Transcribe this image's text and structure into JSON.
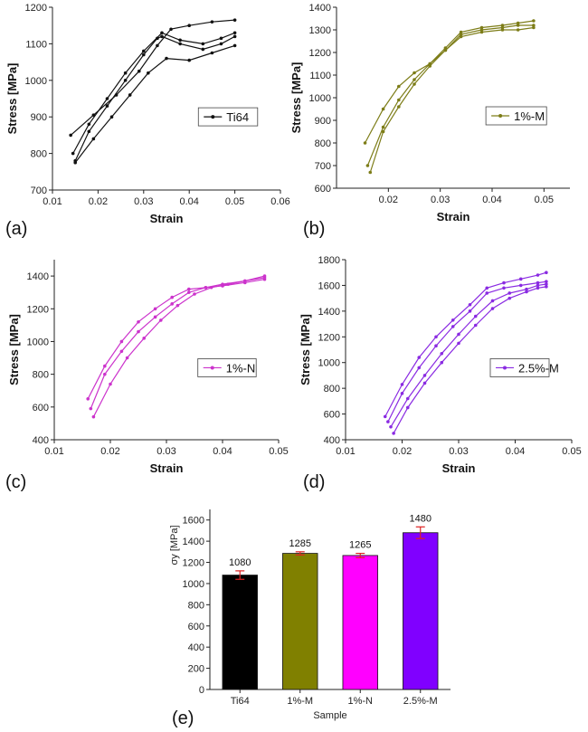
{
  "figure": {
    "panels": [
      {
        "letter": "(a)"
      },
      {
        "letter": "(b)"
      },
      {
        "letter": "(c)"
      },
      {
        "letter": "(d)"
      },
      {
        "letter": "(e)"
      }
    ]
  },
  "chart_data": [
    {
      "type": "line",
      "panel": "(a)",
      "xlabel": "Strain",
      "ylabel": "Stress [MPa]",
      "xlim": [
        0.01,
        0.06
      ],
      "ylim": [
        700,
        1200
      ],
      "xticks": [
        "0.01",
        "0.02",
        "0.03",
        "0.04",
        "0.05",
        "0.06"
      ],
      "yticks": [
        "700",
        "800",
        "900",
        "1000",
        "1100",
        "1200"
      ],
      "color": "#111111",
      "legend": {
        "label": "Ti64",
        "placement": "center-right"
      },
      "series": [
        {
          "x": [
            0.014,
            0.019,
            0.024,
            0.029,
            0.033,
            0.036,
            0.04,
            0.045,
            0.05
          ],
          "y": [
            850,
            905,
            960,
            1025,
            1095,
            1140,
            1150,
            1160,
            1165
          ]
        },
        {
          "x": [
            0.015,
            0.018,
            0.022,
            0.026,
            0.03,
            0.033,
            0.034,
            0.038,
            0.043,
            0.047,
            0.05
          ],
          "y": [
            780,
            860,
            930,
            1000,
            1070,
            1115,
            1120,
            1100,
            1085,
            1100,
            1120
          ]
        },
        {
          "x": [
            0.0145,
            0.018,
            0.022,
            0.026,
            0.03,
            0.034,
            0.038,
            0.043,
            0.047,
            0.05
          ],
          "y": [
            800,
            880,
            950,
            1020,
            1080,
            1130,
            1110,
            1100,
            1115,
            1130
          ]
        },
        {
          "x": [
            0.015,
            0.019,
            0.023,
            0.027,
            0.031,
            0.035,
            0.04,
            0.045,
            0.05
          ],
          "y": [
            775,
            840,
            900,
            960,
            1020,
            1060,
            1055,
            1075,
            1095
          ]
        }
      ]
    },
    {
      "type": "line",
      "panel": "(b)",
      "xlabel": "Strain",
      "ylabel": "Stress [MPa]",
      "xlim": [
        0.01,
        0.055
      ],
      "ylim": [
        600,
        1400
      ],
      "xticks": [
        "0.02",
        "0.03",
        "0.04",
        "0.05"
      ],
      "yticks": [
        "600",
        "700",
        "800",
        "900",
        "1000",
        "1100",
        "1200",
        "1300",
        "1400"
      ],
      "color": "#7d7d18",
      "legend": {
        "label": "1%-M",
        "placement": "center-right"
      },
      "series": [
        {
          "x": [
            0.0155,
            0.019,
            0.022,
            0.025,
            0.028,
            0.031,
            0.034,
            0.038,
            0.042,
            0.045,
            0.048
          ],
          "y": [
            800,
            950,
            1050,
            1110,
            1150,
            1210,
            1270,
            1290,
            1300,
            1300,
            1310
          ]
        },
        {
          "x": [
            0.016,
            0.019,
            0.022,
            0.025,
            0.028,
            0.031,
            0.034,
            0.038,
            0.042,
            0.045,
            0.048
          ],
          "y": [
            700,
            870,
            990,
            1080,
            1150,
            1220,
            1290,
            1310,
            1320,
            1330,
            1340
          ]
        },
        {
          "x": [
            0.0165,
            0.019,
            0.022,
            0.025,
            0.028,
            0.031,
            0.034,
            0.038,
            0.042,
            0.045,
            0.048
          ],
          "y": [
            670,
            850,
            960,
            1060,
            1140,
            1210,
            1280,
            1300,
            1310,
            1320,
            1320
          ]
        }
      ]
    },
    {
      "type": "line",
      "panel": "(c)",
      "xlabel": "Strain",
      "ylabel": "Stress [MPa]",
      "xlim": [
        0.01,
        0.05
      ],
      "ylim": [
        400,
        1500
      ],
      "xticks": [
        "0.01",
        "0.02",
        "0.03",
        "0.04",
        "0.05"
      ],
      "yticks": [
        "400",
        "600",
        "800",
        "1000",
        "1200",
        "1400"
      ],
      "color": "#cc33cc",
      "legend": {
        "label": "1%-N",
        "placement": "center-right"
      },
      "series": [
        {
          "x": [
            0.016,
            0.019,
            0.022,
            0.025,
            0.028,
            0.031,
            0.034,
            0.037,
            0.04,
            0.044,
            0.0475
          ],
          "y": [
            650,
            850,
            1000,
            1120,
            1200,
            1270,
            1320,
            1330,
            1340,
            1360,
            1380
          ]
        },
        {
          "x": [
            0.0165,
            0.019,
            0.022,
            0.025,
            0.028,
            0.031,
            0.034,
            0.037,
            0.04,
            0.044,
            0.0475
          ],
          "y": [
            590,
            800,
            940,
            1060,
            1150,
            1230,
            1300,
            1330,
            1350,
            1370,
            1390
          ]
        },
        {
          "x": [
            0.017,
            0.02,
            0.023,
            0.026,
            0.029,
            0.032,
            0.035,
            0.038,
            0.041,
            0.044,
            0.0475
          ],
          "y": [
            540,
            740,
            900,
            1020,
            1130,
            1220,
            1290,
            1330,
            1350,
            1370,
            1400
          ]
        }
      ]
    },
    {
      "type": "line",
      "panel": "(d)",
      "xlabel": "Strain",
      "ylabel": "Stress [MPa]",
      "xlim": [
        0.01,
        0.05
      ],
      "ylim": [
        400,
        1800
      ],
      "xticks": [
        "0.01",
        "0.02",
        "0.03",
        "0.04",
        "0.05"
      ],
      "yticks": [
        "400",
        "600",
        "800",
        "1000",
        "1200",
        "1400",
        "1600",
        "1800"
      ],
      "color": "#8a2be2",
      "legend": {
        "label": "2.5%-M",
        "placement": "center-right"
      },
      "series": [
        {
          "x": [
            0.017,
            0.02,
            0.023,
            0.026,
            0.029,
            0.032,
            0.035,
            0.038,
            0.041,
            0.044,
            0.0455
          ],
          "y": [
            580,
            830,
            1040,
            1200,
            1330,
            1450,
            1580,
            1620,
            1650,
            1680,
            1700
          ]
        },
        {
          "x": [
            0.0175,
            0.02,
            0.023,
            0.026,
            0.029,
            0.032,
            0.035,
            0.038,
            0.041,
            0.044,
            0.0455
          ],
          "y": [
            540,
            760,
            960,
            1130,
            1280,
            1400,
            1540,
            1580,
            1600,
            1620,
            1630
          ]
        },
        {
          "x": [
            0.018,
            0.021,
            0.024,
            0.027,
            0.03,
            0.033,
            0.036,
            0.039,
            0.042,
            0.044,
            0.0455
          ],
          "y": [
            500,
            720,
            900,
            1070,
            1220,
            1360,
            1480,
            1540,
            1570,
            1600,
            1610
          ]
        },
        {
          "x": [
            0.0185,
            0.021,
            0.024,
            0.027,
            0.03,
            0.033,
            0.036,
            0.039,
            0.042,
            0.044,
            0.0455
          ],
          "y": [
            450,
            650,
            840,
            1000,
            1150,
            1290,
            1420,
            1500,
            1550,
            1580,
            1590
          ]
        }
      ]
    },
    {
      "type": "bar",
      "panel": "(e)",
      "xlabel": "Sample",
      "ylabel": "σy [MPa]",
      "ylim": [
        0,
        1700
      ],
      "yticks": [
        "0",
        "200",
        "400",
        "600",
        "800",
        "1000",
        "1200",
        "1400",
        "1600"
      ],
      "categories": [
        "Ti64",
        "1%-M",
        "1%-N",
        "2.5%-M"
      ],
      "values": [
        1080,
        1285,
        1265,
        1480
      ],
      "errors": [
        40,
        15,
        20,
        55
      ],
      "data_labels": [
        "1080",
        "1285",
        "1265",
        "1480"
      ],
      "colors": [
        "#000000",
        "#808000",
        "#ff00ff",
        "#8000ff"
      ],
      "error_color": "#dd2222"
    }
  ]
}
